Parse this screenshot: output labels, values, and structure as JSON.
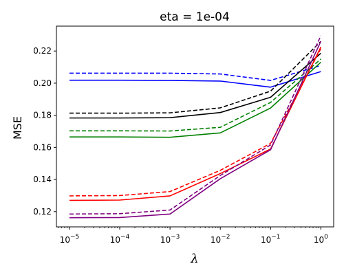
{
  "chart_data": {
    "type": "line",
    "title": "eta = 1e-04",
    "xlabel": "λ",
    "ylabel": "MSE",
    "xscale": "log",
    "xlim": [
      5.5e-06,
      1.8
    ],
    "ylim": [
      0.1105,
      0.2355
    ],
    "grid": false,
    "legend": "none",
    "x": [
      1e-05,
      0.0001,
      0.001,
      0.01,
      0.1,
      1
    ],
    "x_ticks": [
      {
        "base": "10",
        "exp": "−5",
        "value": 1e-05
      },
      {
        "base": "10",
        "exp": "−4",
        "value": 0.0001
      },
      {
        "base": "10",
        "exp": "−3",
        "value": 0.001
      },
      {
        "base": "10",
        "exp": "−2",
        "value": 0.01
      },
      {
        "base": "10",
        "exp": "−1",
        "value": 0.1
      },
      {
        "base": "10",
        "exp": "0",
        "value": 1
      }
    ],
    "y_ticks": [
      {
        "label": "0.12",
        "value": 0.12
      },
      {
        "label": "0.14",
        "value": 0.14
      },
      {
        "label": "0.16",
        "value": 0.16
      },
      {
        "label": "0.18",
        "value": 0.18
      },
      {
        "label": "0.20",
        "value": 0.2
      },
      {
        "label": "0.22",
        "value": 0.22
      }
    ],
    "series": [
      {
        "color": "#0000ff",
        "style": "solid",
        "values": [
          0.2018,
          0.2018,
          0.2017,
          0.2013,
          0.1975,
          0.2072
        ]
      },
      {
        "color": "#0000ff",
        "style": "dashed",
        "values": [
          0.2062,
          0.2062,
          0.2062,
          0.2057,
          0.2017,
          0.211
        ]
      },
      {
        "color": "#000000",
        "style": "solid",
        "values": [
          0.1783,
          0.1783,
          0.1785,
          0.1817,
          0.1912,
          0.2186
        ]
      },
      {
        "color": "#000000",
        "style": "dashed",
        "values": [
          0.1813,
          0.1813,
          0.1815,
          0.1846,
          0.195,
          0.226
        ]
      },
      {
        "color": "#008000",
        "style": "solid",
        "values": [
          0.1665,
          0.1665,
          0.1663,
          0.169,
          0.1845,
          0.213
        ]
      },
      {
        "color": "#008000",
        "style": "dashed",
        "values": [
          0.1703,
          0.1703,
          0.1702,
          0.1725,
          0.188,
          0.215
        ]
      },
      {
        "color": "#ff0000",
        "style": "solid",
        "values": [
          0.127,
          0.1272,
          0.1298,
          0.1437,
          0.159,
          0.2225
        ]
      },
      {
        "color": "#ff0000",
        "style": "dashed",
        "values": [
          0.1298,
          0.13,
          0.1325,
          0.1457,
          0.1625,
          0.2215
        ]
      },
      {
        "color": "#800080",
        "style": "solid",
        "values": [
          0.1162,
          0.1163,
          0.1185,
          0.1405,
          0.1585,
          0.226
        ]
      },
      {
        "color": "#800080",
        "style": "dashed",
        "values": [
          0.1185,
          0.1187,
          0.121,
          0.1425,
          0.1615,
          0.2295
        ]
      }
    ]
  }
}
